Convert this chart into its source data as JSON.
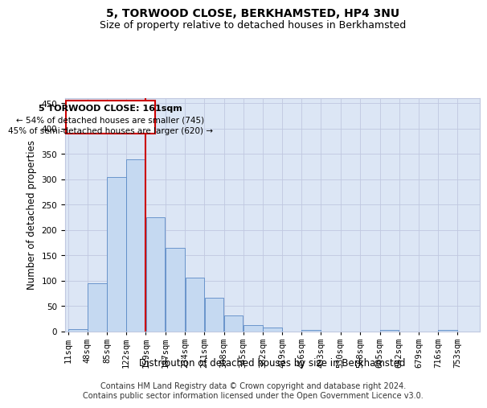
{
  "title": "5, TORWOOD CLOSE, BERKHAMSTED, HP4 3NU",
  "subtitle": "Size of property relative to detached houses in Berkhamsted",
  "xlabel": "Distribution of detached houses by size in Berkhamsted",
  "ylabel": "Number of detached properties",
  "footer_line1": "Contains HM Land Registry data © Crown copyright and database right 2024.",
  "footer_line2": "Contains public sector information licensed under the Open Government Licence v3.0.",
  "annotation_line1": "5 TORWOOD CLOSE: 161sqm",
  "annotation_line2": "← 54% of detached houses are smaller (745)",
  "annotation_line3": "45% of semi-detached houses are larger (620) →",
  "bin_edges": [
    11,
    48,
    85,
    122,
    159,
    197,
    234,
    271,
    308,
    345,
    382,
    419,
    456,
    493,
    530,
    568,
    605,
    642,
    679,
    716,
    753
  ],
  "bin_labels": [
    "11sqm",
    "48sqm",
    "85sqm",
    "122sqm",
    "159sqm",
    "197sqm",
    "234sqm",
    "271sqm",
    "308sqm",
    "345sqm",
    "382sqm",
    "419sqm",
    "456sqm",
    "493sqm",
    "530sqm",
    "568sqm",
    "605sqm",
    "642sqm",
    "679sqm",
    "716sqm",
    "753sqm"
  ],
  "bar_heights": [
    5,
    95,
    305,
    340,
    225,
    165,
    107,
    67,
    32,
    13,
    8,
    0,
    3,
    0,
    0,
    0,
    3,
    0,
    0,
    3,
    0
  ],
  "bar_color": "#c5d9f1",
  "bar_edge_color": "#5a8ac6",
  "vline_color": "#cc0000",
  "vline_x": 159,
  "annotation_box_color": "#cc0000",
  "annotation_fill": "white",
  "ylim": [
    0,
    460
  ],
  "yticks": [
    0,
    50,
    100,
    150,
    200,
    250,
    300,
    350,
    400,
    450
  ],
  "grid_color": "#c0c8e0",
  "bg_color": "#dce6f5",
  "title_fontsize": 10,
  "subtitle_fontsize": 9,
  "axis_label_fontsize": 8.5,
  "tick_fontsize": 7.5,
  "annotation_fontsize": 8,
  "footer_fontsize": 7
}
